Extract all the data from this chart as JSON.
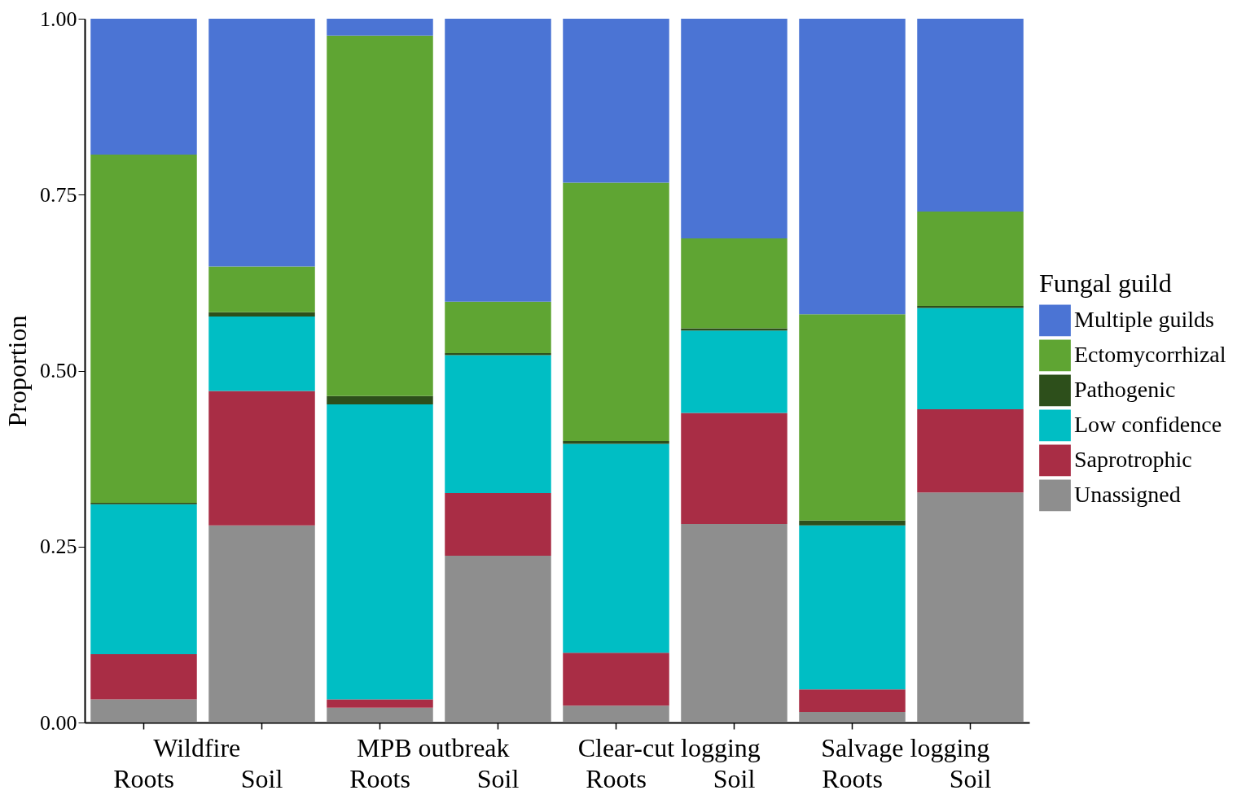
{
  "chart_data": {
    "type": "bar",
    "stacked": true,
    "ylabel": "Proportion",
    "legend_title": "Fungal guild",
    "legend": "right",
    "categories": [
      "Roots",
      "Soil",
      "Roots",
      "Soil",
      "Roots",
      "Soil",
      "Roots",
      "Soil"
    ],
    "annotations": [
      "Wildfire",
      "MPB outbreak",
      "Clear-cut logging",
      "Salvage logging"
    ],
    "ylim": [
      0,
      1
    ],
    "yticks": [
      {
        "value": 0,
        "label": "0.00"
      },
      {
        "value": 0.25,
        "label": "0.25"
      },
      {
        "value": 0.5,
        "label": "0.50"
      },
      {
        "value": 0.75,
        "label": "0.75"
      },
      {
        "value": 1,
        "label": "1.00"
      }
    ],
    "series": [
      {
        "name": "Unassigned",
        "color": "#8e8e8e",
        "values": [
          0.033,
          0.28,
          0.021,
          0.237,
          0.024,
          0.282,
          0.015,
          0.327
        ]
      },
      {
        "name": "Saprotrophic",
        "color": "#a92d45",
        "values": [
          0.064,
          0.191,
          0.012,
          0.089,
          0.075,
          0.158,
          0.032,
          0.118
        ]
      },
      {
        "name": "Low confidence",
        "color": "#00bec4",
        "values": [
          0.213,
          0.106,
          0.419,
          0.196,
          0.297,
          0.117,
          0.233,
          0.144
        ]
      },
      {
        "name": "Pathogenic",
        "color": "#2d4f1b",
        "values": [
          0.002,
          0.006,
          0.012,
          0.003,
          0.004,
          0.003,
          0.007,
          0.003
        ]
      },
      {
        "name": "Ectomycorrhizal",
        "color": "#5fa533",
        "values": [
          0.495,
          0.065,
          0.512,
          0.073,
          0.367,
          0.128,
          0.293,
          0.134
        ]
      },
      {
        "name": "Multiple guilds",
        "color": "#4b74d4",
        "values": [
          0.193,
          0.352,
          0.024,
          0.402,
          0.233,
          0.312,
          0.42,
          0.274
        ]
      }
    ]
  }
}
